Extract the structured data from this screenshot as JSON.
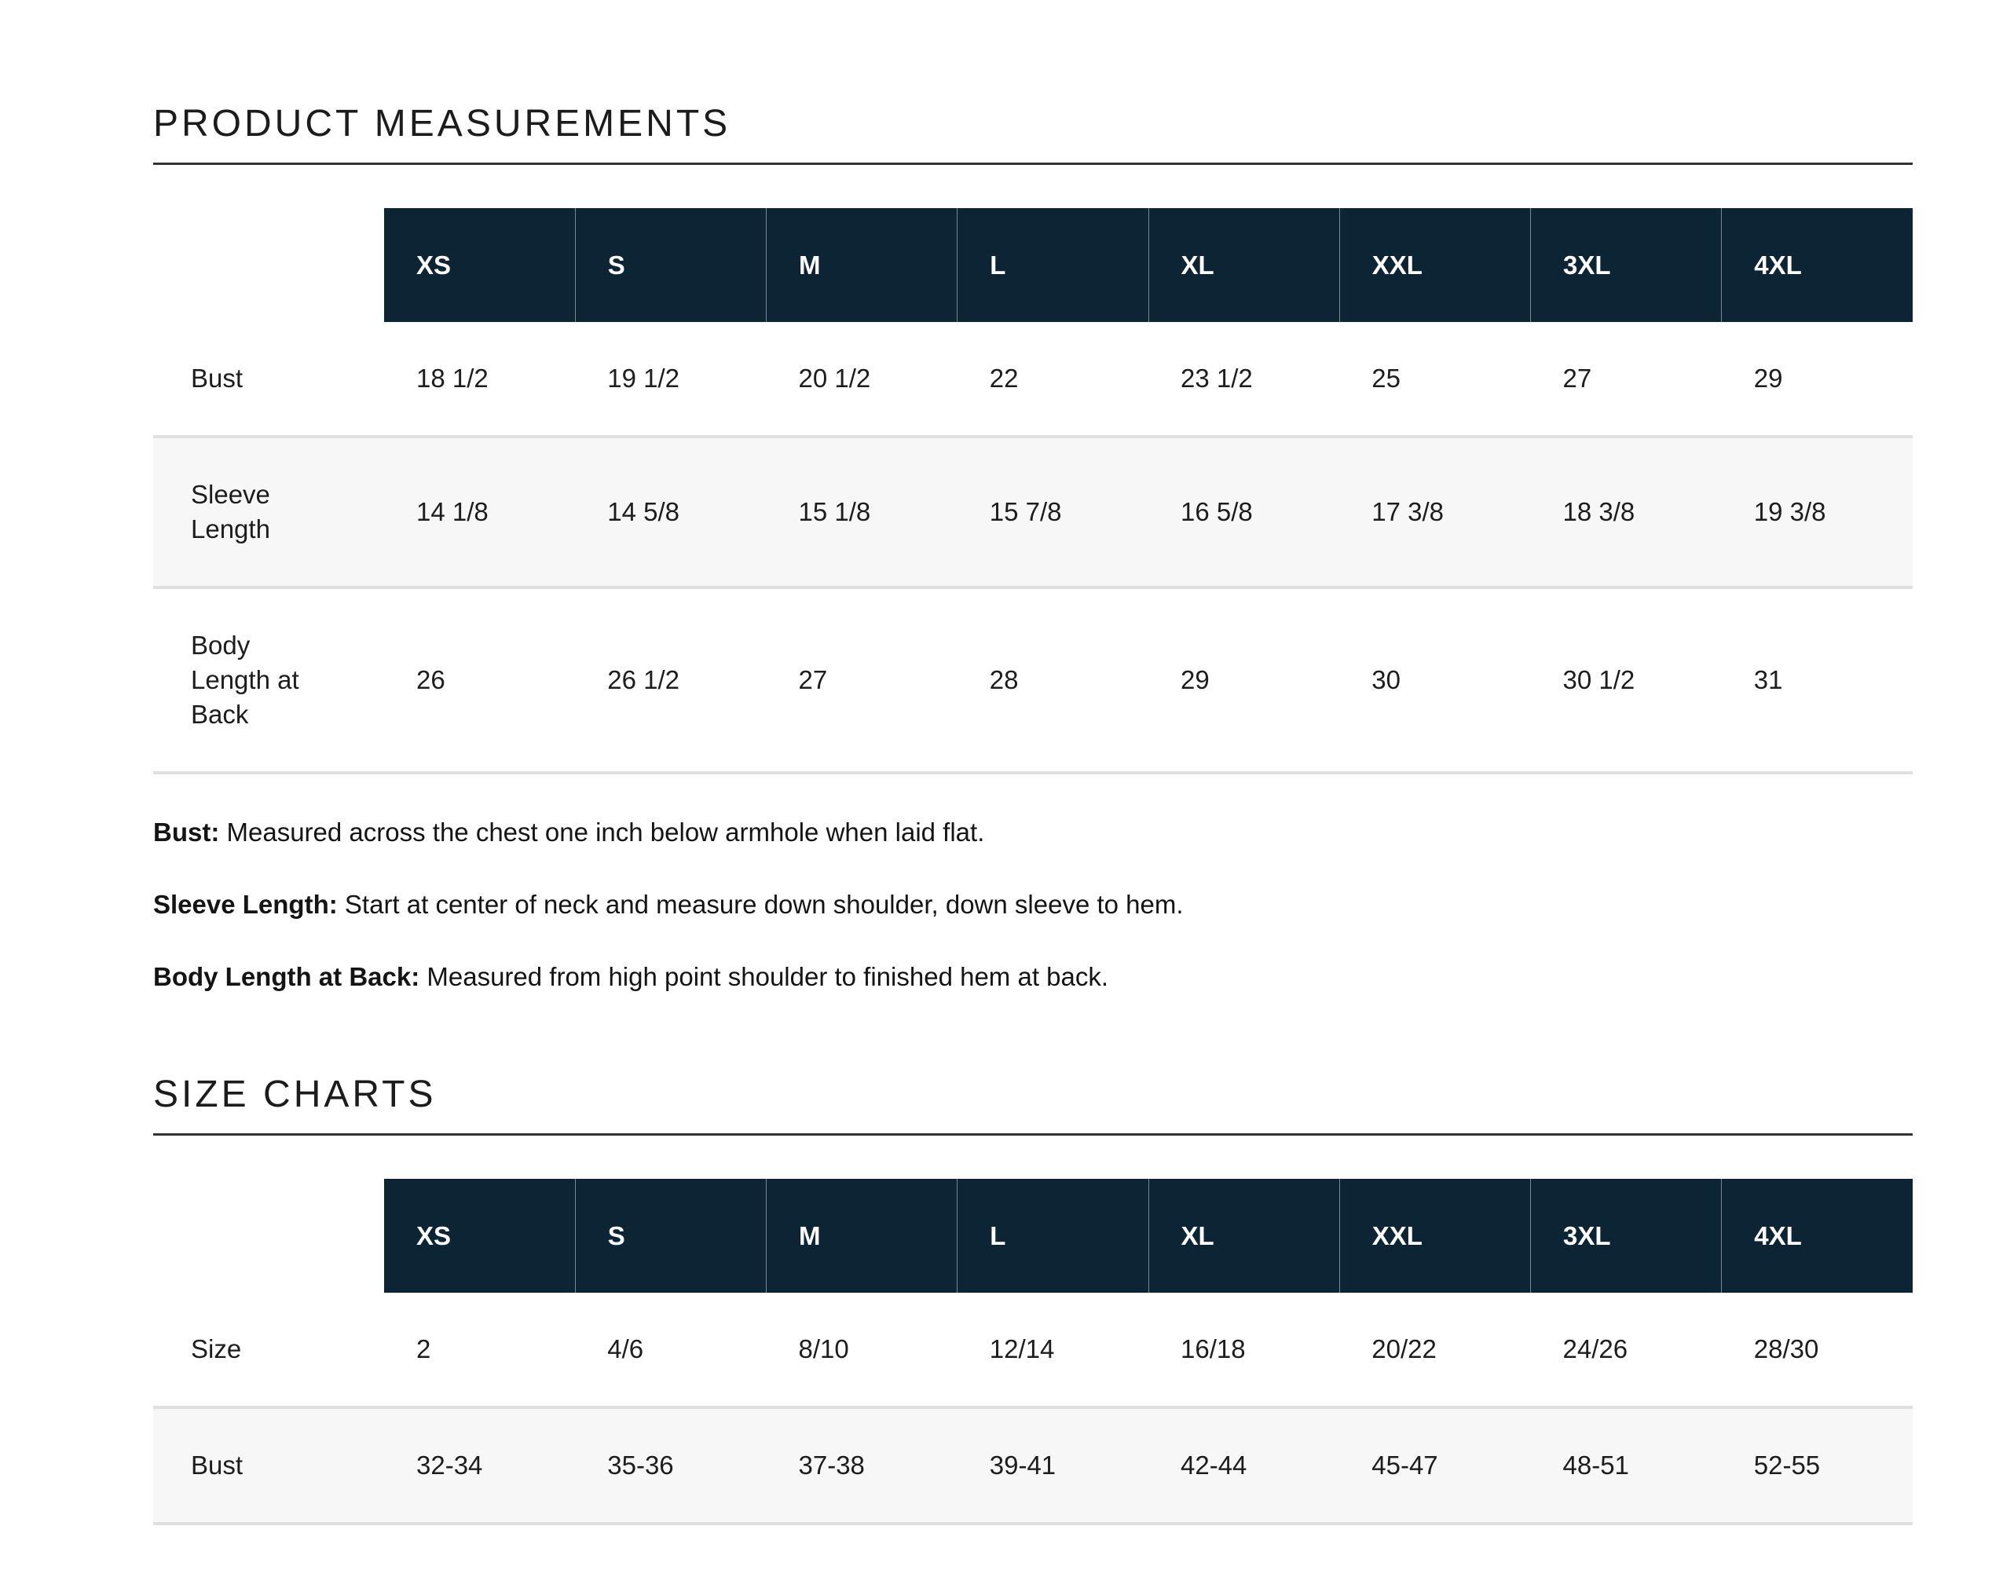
{
  "colors": {
    "header_bg": "#0d2435",
    "stripe_bg": "#f7f7f7",
    "divider": "#e0e0e0",
    "rule": "#333333"
  },
  "measurements": {
    "heading": "PRODUCT MEASUREMENTS",
    "sizes": [
      "XS",
      "S",
      "M",
      "L",
      "XL",
      "XXL",
      "3XL",
      "4XL"
    ],
    "rows": [
      {
        "label": "Bust",
        "values": [
          "18 1/2",
          "19 1/2",
          "20 1/2",
          "22",
          "23 1/2",
          "25",
          "27",
          "29"
        ]
      },
      {
        "label": "Sleeve Length",
        "values": [
          "14 1/8",
          "14 5/8",
          "15 1/8",
          "15 7/8",
          "16 5/8",
          "17 3/8",
          "18 3/8",
          "19 3/8"
        ]
      },
      {
        "label": "Body Length at Back",
        "values": [
          "26",
          "26 1/2",
          "27",
          "28",
          "29",
          "30",
          "30 1/2",
          "31"
        ]
      }
    ],
    "notes": [
      {
        "term": "Bust:",
        "text": "Measured across the chest one inch below armhole when laid flat."
      },
      {
        "term": "Sleeve Length:",
        "text": "Start at center of neck and measure down shoulder, down sleeve to hem."
      },
      {
        "term": "Body Length at Back:",
        "text": "Measured from high point shoulder to finished hem at back."
      }
    ]
  },
  "size_charts": {
    "heading": "SIZE CHARTS",
    "sizes": [
      "XS",
      "S",
      "M",
      "L",
      "XL",
      "XXL",
      "3XL",
      "4XL"
    ],
    "rows": [
      {
        "label": "Size",
        "values": [
          "2",
          "4/6",
          "8/10",
          "12/14",
          "16/18",
          "20/22",
          "24/26",
          "28/30"
        ]
      },
      {
        "label": "Bust",
        "values": [
          "32-34",
          "35-36",
          "37-38",
          "39-41",
          "42-44",
          "45-47",
          "48-51",
          "52-55"
        ]
      }
    ]
  }
}
